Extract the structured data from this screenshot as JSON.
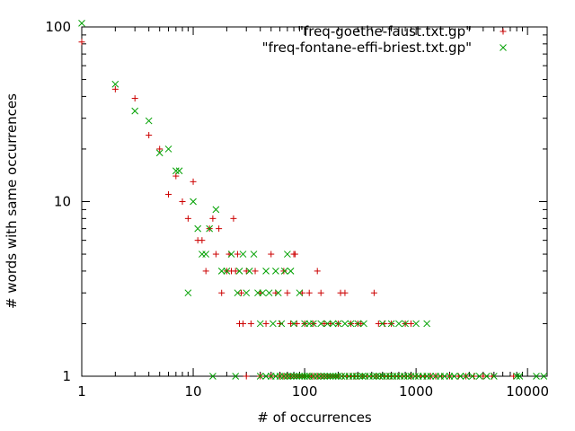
{
  "chart_data": {
    "type": "scatter",
    "xlabel": "# of occurrences",
    "ylabel": "# words with same occurrences",
    "x_scale": "log",
    "y_scale": "log",
    "xlim": [
      1,
      15000
    ],
    "ylim": [
      1,
      100
    ],
    "grid": false,
    "legend_position": "top-right",
    "x_ticks": [
      {
        "value": 1,
        "label": "1"
      },
      {
        "value": 10,
        "label": "10"
      },
      {
        "value": 100,
        "label": "100"
      },
      {
        "value": 1000,
        "label": "1000"
      },
      {
        "value": 10000,
        "label": "10000"
      }
    ],
    "y_ticks": [
      {
        "value": 1,
        "label": "1"
      },
      {
        "value": 10,
        "label": "10"
      },
      {
        "value": 100,
        "label": "100"
      }
    ],
    "series": [
      {
        "name": "\"freq-goethe-faust.txt.gp\"",
        "marker": "plus",
        "color": "#cc0000",
        "points": [
          [
            1,
            82
          ],
          [
            2,
            44
          ],
          [
            3,
            39
          ],
          [
            4,
            24
          ],
          [
            5,
            20
          ],
          [
            6,
            11
          ],
          [
            7,
            14
          ],
          [
            8,
            10
          ],
          [
            9,
            8
          ],
          [
            10,
            13
          ],
          [
            11,
            6
          ],
          [
            12,
            6
          ],
          [
            13,
            4
          ],
          [
            14,
            7
          ],
          [
            15,
            8
          ],
          [
            16,
            5
          ],
          [
            17,
            7
          ],
          [
            18,
            3
          ],
          [
            20,
            4
          ],
          [
            21,
            5
          ],
          [
            22,
            4
          ],
          [
            23,
            8
          ],
          [
            24,
            4
          ],
          [
            25,
            5
          ],
          [
            26,
            2
          ],
          [
            27,
            3
          ],
          [
            28,
            2
          ],
          [
            30,
            4
          ],
          [
            33,
            2
          ],
          [
            36,
            4
          ],
          [
            40,
            3
          ],
          [
            45,
            2
          ],
          [
            50,
            5
          ],
          [
            55,
            3
          ],
          [
            60,
            2
          ],
          [
            65,
            4
          ],
          [
            70,
            3
          ],
          [
            75,
            2
          ],
          [
            80,
            5
          ],
          [
            82,
            5
          ],
          [
            85,
            2
          ],
          [
            95,
            3
          ],
          [
            100,
            2
          ],
          [
            110,
            3
          ],
          [
            120,
            2
          ],
          [
            130,
            4
          ],
          [
            140,
            3
          ],
          [
            150,
            2
          ],
          [
            170,
            2
          ],
          [
            200,
            2
          ],
          [
            210,
            3
          ],
          [
            230,
            3
          ],
          [
            260,
            2
          ],
          [
            300,
            2
          ],
          [
            320,
            2
          ],
          [
            420,
            3
          ],
          [
            460,
            2
          ],
          [
            520,
            2
          ],
          [
            600,
            2
          ],
          [
            800,
            2
          ],
          [
            900,
            2
          ],
          [
            30,
            1
          ],
          [
            40,
            1
          ],
          [
            50,
            1
          ],
          [
            60,
            1
          ],
          [
            65,
            1
          ],
          [
            70,
            1
          ],
          [
            75,
            1
          ],
          [
            80,
            1
          ],
          [
            85,
            1
          ],
          [
            90,
            1
          ],
          [
            95,
            1
          ],
          [
            100,
            1
          ],
          [
            110,
            1
          ],
          [
            115,
            1
          ],
          [
            120,
            1
          ],
          [
            130,
            1
          ],
          [
            140,
            1
          ],
          [
            150,
            1
          ],
          [
            160,
            1
          ],
          [
            170,
            1
          ],
          [
            180,
            1
          ],
          [
            190,
            1
          ],
          [
            200,
            1
          ],
          [
            220,
            1
          ],
          [
            240,
            1
          ],
          [
            260,
            1
          ],
          [
            280,
            1
          ],
          [
            300,
            1
          ],
          [
            330,
            1
          ],
          [
            360,
            1
          ],
          [
            400,
            1
          ],
          [
            440,
            1
          ],
          [
            480,
            1
          ],
          [
            520,
            1
          ],
          [
            560,
            1
          ],
          [
            600,
            1
          ],
          [
            650,
            1
          ],
          [
            700,
            1
          ],
          [
            760,
            1
          ],
          [
            820,
            1
          ],
          [
            900,
            1
          ],
          [
            1000,
            1
          ],
          [
            1100,
            1
          ],
          [
            1200,
            1
          ],
          [
            1350,
            1
          ],
          [
            1500,
            1
          ],
          [
            1700,
            1
          ],
          [
            2000,
            1
          ],
          [
            2400,
            1
          ],
          [
            2800,
            1
          ],
          [
            3300,
            1
          ],
          [
            4000,
            1
          ],
          [
            4800,
            1
          ],
          [
            7500,
            1
          ]
        ]
      },
      {
        "name": "\"freq-fontane-effi-briest.txt.gp\"",
        "marker": "cross",
        "color": "#00a000",
        "points": [
          [
            1,
            105
          ],
          [
            2,
            47
          ],
          [
            3,
            33
          ],
          [
            4,
            29
          ],
          [
            5,
            19
          ],
          [
            6,
            20
          ],
          [
            7,
            15
          ],
          [
            7.5,
            15
          ],
          [
            9,
            3
          ],
          [
            10,
            10
          ],
          [
            11,
            7
          ],
          [
            12,
            5
          ],
          [
            13,
            5
          ],
          [
            14,
            7
          ],
          [
            15,
            1
          ],
          [
            16,
            9
          ],
          [
            18,
            4
          ],
          [
            20,
            4
          ],
          [
            22,
            5
          ],
          [
            24,
            1
          ],
          [
            25,
            3
          ],
          [
            26,
            4
          ],
          [
            28,
            5
          ],
          [
            30,
            3
          ],
          [
            32,
            4
          ],
          [
            35,
            5
          ],
          [
            38,
            3
          ],
          [
            40,
            2
          ],
          [
            42,
            3
          ],
          [
            45,
            4
          ],
          [
            48,
            3
          ],
          [
            52,
            2
          ],
          [
            55,
            4
          ],
          [
            58,
            3
          ],
          [
            62,
            2
          ],
          [
            66,
            4
          ],
          [
            70,
            5
          ],
          [
            75,
            4
          ],
          [
            80,
            2
          ],
          [
            90,
            3
          ],
          [
            100,
            2
          ],
          [
            110,
            2
          ],
          [
            120,
            2
          ],
          [
            140,
            2
          ],
          [
            160,
            2
          ],
          [
            180,
            2
          ],
          [
            200,
            2
          ],
          [
            230,
            2
          ],
          [
            260,
            2
          ],
          [
            300,
            2
          ],
          [
            340,
            2
          ],
          [
            500,
            2
          ],
          [
            600,
            2
          ],
          [
            700,
            2
          ],
          [
            800,
            2
          ],
          [
            1000,
            2
          ],
          [
            1250,
            2
          ],
          [
            40,
            1
          ],
          [
            45,
            1
          ],
          [
            50,
            1
          ],
          [
            55,
            1
          ],
          [
            60,
            1
          ],
          [
            65,
            1
          ],
          [
            70,
            1
          ],
          [
            75,
            1
          ],
          [
            80,
            1
          ],
          [
            85,
            1
          ],
          [
            90,
            1
          ],
          [
            95,
            1
          ],
          [
            100,
            1
          ],
          [
            105,
            1
          ],
          [
            110,
            1
          ],
          [
            120,
            1
          ],
          [
            130,
            1
          ],
          [
            140,
            1
          ],
          [
            150,
            1
          ],
          [
            160,
            1
          ],
          [
            170,
            1
          ],
          [
            180,
            1
          ],
          [
            190,
            1
          ],
          [
            200,
            1
          ],
          [
            215,
            1
          ],
          [
            230,
            1
          ],
          [
            250,
            1
          ],
          [
            270,
            1
          ],
          [
            290,
            1
          ],
          [
            310,
            1
          ],
          [
            330,
            1
          ],
          [
            350,
            1
          ],
          [
            380,
            1
          ],
          [
            410,
            1
          ],
          [
            440,
            1
          ],
          [
            470,
            1
          ],
          [
            500,
            1
          ],
          [
            540,
            1
          ],
          [
            580,
            1
          ],
          [
            620,
            1
          ],
          [
            670,
            1
          ],
          [
            720,
            1
          ],
          [
            780,
            1
          ],
          [
            840,
            1
          ],
          [
            900,
            1
          ],
          [
            980,
            1
          ],
          [
            1050,
            1
          ],
          [
            1150,
            1
          ],
          [
            1250,
            1
          ],
          [
            1350,
            1
          ],
          [
            1500,
            1
          ],
          [
            1650,
            1
          ],
          [
            1800,
            1
          ],
          [
            2000,
            1
          ],
          [
            2200,
            1
          ],
          [
            2500,
            1
          ],
          [
            2800,
            1
          ],
          [
            3200,
            1
          ],
          [
            3700,
            1
          ],
          [
            4300,
            1
          ],
          [
            5000,
            1
          ],
          [
            8000,
            1
          ],
          [
            8500,
            1
          ],
          [
            12000,
            1
          ],
          [
            14000,
            1
          ]
        ]
      }
    ]
  }
}
